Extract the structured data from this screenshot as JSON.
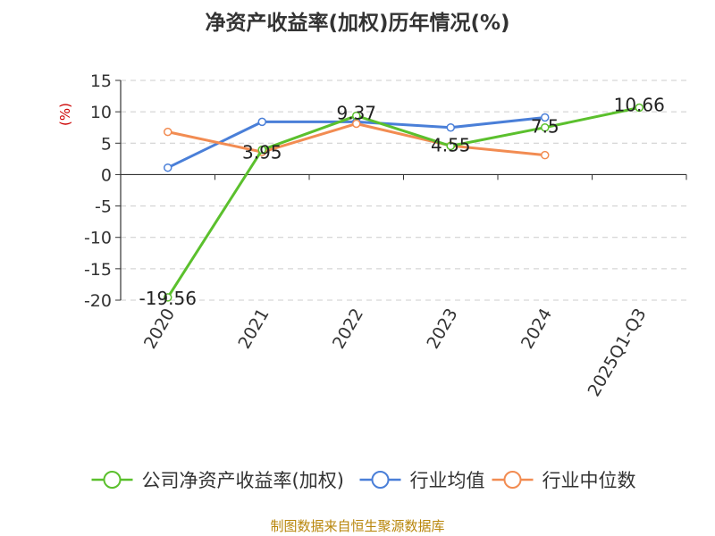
{
  "chart_data": {
    "type": "line",
    "title": "净资产收益率(加权)历年情况(%)",
    "ylabel": "(%)",
    "xlabel": "",
    "categories": [
      "2020",
      "2021",
      "2022",
      "2023",
      "2024",
      "2025Q1-Q3"
    ],
    "ylim": [
      -20,
      15
    ],
    "yticks": [
      15,
      10,
      5,
      0,
      -5,
      -10,
      -15,
      -20
    ],
    "grid": true,
    "legend_position": "bottom",
    "series": [
      {
        "name": "公司净资产收益率(加权)",
        "color": "#5bc02d",
        "values": [
          -19.56,
          3.95,
          9.37,
          4.55,
          7.5,
          10.66
        ],
        "labels": [
          "-19.56",
          "3.95",
          "9.37",
          "4.55",
          "7.5",
          "10.66"
        ]
      },
      {
        "name": "行业均值",
        "color": "#4a7fd8",
        "values": [
          1.1,
          8.4,
          8.4,
          7.5,
          9.1,
          null
        ]
      },
      {
        "name": "行业中位数",
        "color": "#f28c52",
        "values": [
          6.8,
          3.6,
          8.1,
          4.6,
          3.1,
          null
        ]
      }
    ]
  },
  "source": "制图数据来自恒生聚源数据库",
  "ylabel_color": "#cc0000"
}
